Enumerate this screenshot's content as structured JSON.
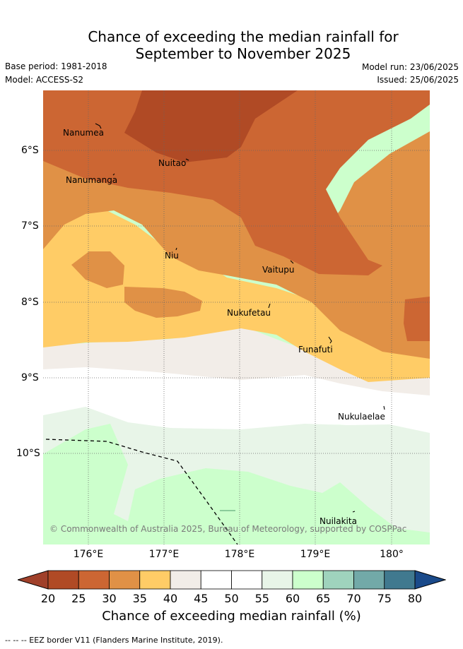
{
  "title": {
    "line1": "Chance of exceeding the median rainfall for",
    "line2": "September to November 2025"
  },
  "meta": {
    "base_period": "Base period: 1981-2018",
    "model": "Model: ACCESS-S2",
    "model_run": "Model run: 23/06/2025",
    "issued": "Issued: 25/06/2025"
  },
  "map": {
    "places": [
      {
        "id": "nanumea",
        "label": "Nanumea"
      },
      {
        "id": "nuitao",
        "label": "Nuitao"
      },
      {
        "id": "nanumanga",
        "label": "Nanumanga"
      },
      {
        "id": "niu",
        "label": "Niu"
      },
      {
        "id": "vaitupu",
        "label": "Vaitupu"
      },
      {
        "id": "nukufetau",
        "label": "Nukufetau"
      },
      {
        "id": "funafuti",
        "label": "Funafuti"
      },
      {
        "id": "nukulaelae",
        "label": "Nukulaelae"
      },
      {
        "id": "nuilakita",
        "label": "Nuilakita"
      }
    ],
    "lat_labels": [
      "6°S",
      "7°S",
      "8°S",
      "9°S",
      "10°S"
    ],
    "lon_labels": [
      "176°E",
      "177°E",
      "178°E",
      "179°E",
      "180°"
    ],
    "copyright": "© Commonwealth of Australia 2025, Bureau of Meteorology, supported by COSPPac"
  },
  "colorbar": {
    "ticks": [
      "20",
      "25",
      "30",
      "35",
      "40",
      "45",
      "50",
      "55",
      "60",
      "65",
      "70",
      "75",
      "80"
    ],
    "colors": [
      "#b04a25",
      "#cc6633",
      "#e09146",
      "#ffcc66",
      "#f2ede8",
      "#ffffff",
      "#ffffff",
      "#e8f5e8",
      "#ccffcc",
      "#9fd3bd",
      "#72a9a8",
      "#40798f"
    ],
    "under_color": "#a0402a",
    "over_color": "#1a4a8a",
    "label": "Chance of exceeding median rainfall (%)"
  },
  "legend": {
    "eez": "--  --  -- EEZ border V11 (Flanders Marine Institute, 2019)."
  }
}
